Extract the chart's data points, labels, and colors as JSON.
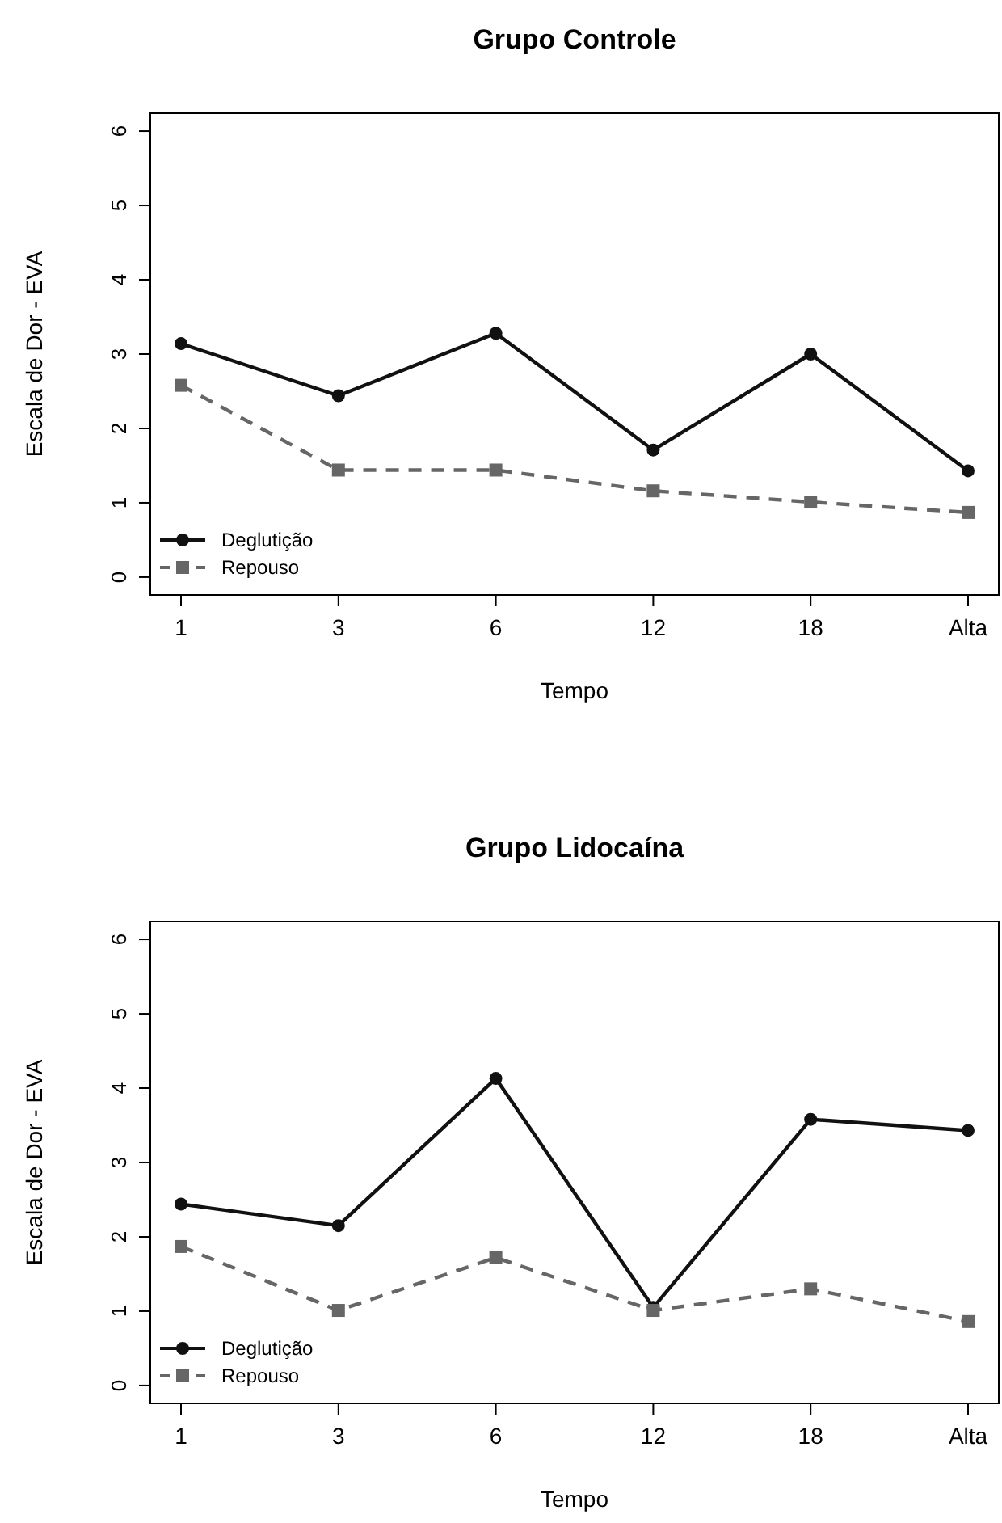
{
  "chart_data": [
    {
      "type": "line",
      "title": "Grupo Controle",
      "xlabel": "Tempo",
      "ylabel": "Escala de Dor - EVA",
      "categories": [
        "1",
        "3",
        "6",
        "12",
        "18",
        "Alta"
      ],
      "ylim": [
        -0.24,
        6.24
      ],
      "yticks": [
        0,
        1,
        2,
        3,
        4,
        5,
        6
      ],
      "legend": "bottom left",
      "grid": false,
      "series": [
        {
          "name": "Deglutição",
          "color": "#111111",
          "marker": "circle",
          "line_style": "solid",
          "values": [
            3.14,
            2.44,
            3.28,
            1.71,
            3.0,
            1.43
          ]
        },
        {
          "name": "Repouso",
          "color": "#666666",
          "marker": "square",
          "line_style": "dashed",
          "values": [
            2.58,
            1.44,
            1.44,
            1.16,
            1.01,
            0.87
          ]
        }
      ]
    },
    {
      "type": "line",
      "title": "Grupo Lidocaína",
      "xlabel": "Tempo",
      "ylabel": "Escala de Dor - EVA",
      "categories": [
        "1",
        "3",
        "6",
        "12",
        "18",
        "Alta"
      ],
      "ylim": [
        -0.24,
        6.24
      ],
      "yticks": [
        0,
        1,
        2,
        3,
        4,
        5,
        6
      ],
      "legend": "bottom left",
      "grid": false,
      "series": [
        {
          "name": "Deglutição",
          "color": "#111111",
          "marker": "circle",
          "line_style": "solid",
          "values": [
            2.44,
            2.15,
            4.13,
            1.05,
            3.58,
            3.43
          ]
        },
        {
          "name": "Repouso",
          "color": "#666666",
          "marker": "square",
          "line_style": "dashed",
          "values": [
            1.87,
            1.01,
            1.72,
            1.01,
            1.3,
            0.86
          ]
        }
      ]
    }
  ]
}
